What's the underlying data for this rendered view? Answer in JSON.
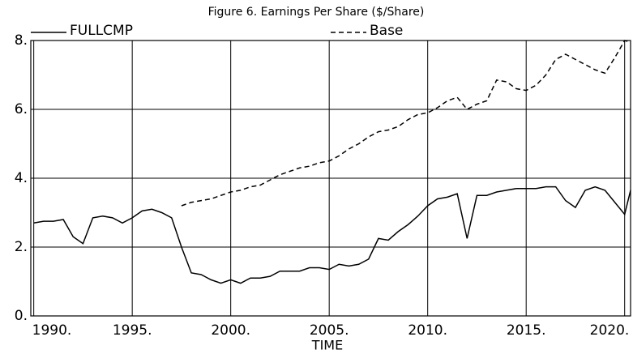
{
  "chart_data": {
    "type": "line",
    "title": "Figure 6.  Earnings Per Share ($/Share)",
    "xlabel": "TIME",
    "x": [
      1990,
      1990.5,
      1991,
      1991.5,
      1992,
      1992.5,
      1993,
      1993.5,
      1994,
      1994.5,
      1995,
      1995.5,
      1996,
      1996.5,
      1997,
      1997.5,
      1998,
      1998.5,
      1999,
      1999.5,
      2000,
      2000.5,
      2001,
      2001.5,
      2002,
      2002.5,
      2003,
      2003.5,
      2004,
      2004.5,
      2005,
      2005.5,
      2006,
      2006.5,
      2007,
      2007.5,
      2008,
      2008.5,
      2009,
      2009.5,
      2010,
      2010.5,
      2011,
      2011.5,
      2012,
      2012.5,
      2013,
      2013.5,
      2014,
      2014.5,
      2015,
      2015.5,
      2016,
      2016.5,
      2017,
      2017.5,
      2018,
      2018.5,
      2019,
      2019.5,
      2020,
      2020.3
    ],
    "series": [
      {
        "name": "FULLCMP",
        "color": "#000000",
        "dash": false,
        "values": [
          2.7,
          2.75,
          2.75,
          2.8,
          2.3,
          2.1,
          2.85,
          2.9,
          2.85,
          2.7,
          2.85,
          3.05,
          3.1,
          3.0,
          2.85,
          2.0,
          1.25,
          1.2,
          1.05,
          0.95,
          1.05,
          0.95,
          1.1,
          1.1,
          1.15,
          1.3,
          1.3,
          1.3,
          1.4,
          1.4,
          1.35,
          1.5,
          1.45,
          1.5,
          1.65,
          2.25,
          2.2,
          2.45,
          2.65,
          2.9,
          3.2,
          3.4,
          3.45,
          3.55,
          2.25,
          3.5,
          3.5,
          3.6,
          3.65,
          3.7,
          3.7,
          3.7,
          3.75,
          3.75,
          3.35,
          3.15,
          3.65,
          3.75,
          3.65,
          3.3,
          2.95,
          3.65
        ]
      },
      {
        "name": "Base",
        "color": "#000000",
        "dash": true,
        "values": [
          null,
          null,
          null,
          null,
          null,
          null,
          null,
          null,
          null,
          null,
          null,
          null,
          null,
          null,
          null,
          3.2,
          3.3,
          3.35,
          3.4,
          3.5,
          3.6,
          3.65,
          3.75,
          3.8,
          3.95,
          4.1,
          4.2,
          4.3,
          4.35,
          4.45,
          4.5,
          4.65,
          4.85,
          5.0,
          5.2,
          5.35,
          5.4,
          5.5,
          5.7,
          5.85,
          5.9,
          6.05,
          6.25,
          6.35,
          6.0,
          6.15,
          6.25,
          6.85,
          6.8,
          6.6,
          6.55,
          6.7,
          7.0,
          7.45,
          7.6,
          7.45,
          7.3,
          7.15,
          7.05,
          7.5,
          8.0,
          7.95
        ]
      }
    ],
    "xlim": [
      1989.85,
      2020.3
    ],
    "xticks": [
      {
        "value": 1990,
        "label": "1990."
      },
      {
        "value": 1995,
        "label": "1995."
      },
      {
        "value": 2000,
        "label": "2000."
      },
      {
        "value": 2005,
        "label": "2005."
      },
      {
        "value": 2010,
        "label": "2010."
      },
      {
        "value": 2015,
        "label": "2015."
      },
      {
        "value": 2020,
        "label": "2020."
      }
    ],
    "ylim": [
      0,
      8
    ],
    "yticks": [
      {
        "value": 0,
        "label": "0."
      },
      {
        "value": 2,
        "label": "2."
      },
      {
        "value": 4,
        "label": "4."
      },
      {
        "value": 6,
        "label": "6."
      },
      {
        "value": 8,
        "label": "8."
      }
    ],
    "grid": true
  }
}
